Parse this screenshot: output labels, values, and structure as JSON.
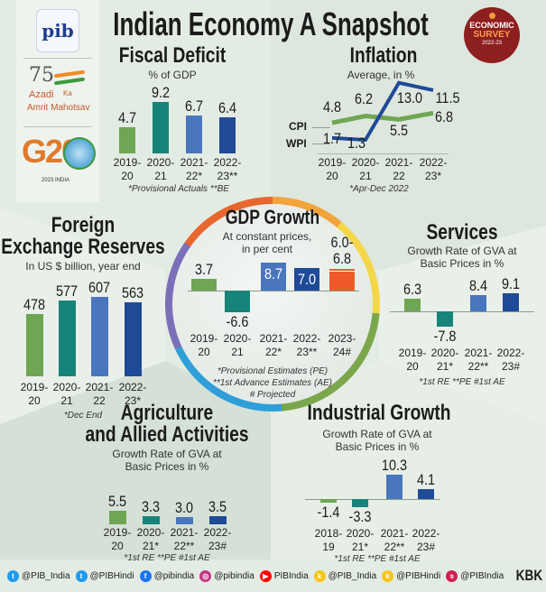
{
  "header": {
    "title": "Indian Economy A Snapshot"
  },
  "logos": {
    "pib": "pib",
    "azadi_75": "75",
    "azadi_line1": "Azadi",
    "azadi_ka": "Ka",
    "azadi_line2": "Amrit Mahotsav",
    "g20": "G20",
    "g20_sub": "2023 INDIA"
  },
  "badge": {
    "line1": "ECONOMIC",
    "line2": "SURVEY",
    "line3": "2022-23",
    "color": "#8e1f1f"
  },
  "colors": {
    "green": "#6fa653",
    "teal": "#17847a",
    "blue": "#4a76bd",
    "dark_blue": "#1f4a97",
    "orange": "#f05a2b"
  },
  "chart_data": [
    {
      "id": "fiscal",
      "type": "bar",
      "title": "Fiscal Deficit",
      "subtitle": "% of GDP",
      "categories": [
        "2019-20",
        "2020-21",
        "2021-22*",
        "2022-23**"
      ],
      "values": [
        4.7,
        9.2,
        6.7,
        6.4
      ],
      "labels": [
        "4.7",
        "9.2",
        "6.7",
        "6.4"
      ],
      "footnote": "*Provisional Actuals **BE"
    },
    {
      "id": "inflation",
      "type": "line",
      "title": "Inflation",
      "subtitle": "Average, in %",
      "categories": [
        "2019-20",
        "2020-21",
        "2021-22",
        "2022-23*"
      ],
      "series": [
        {
          "name": "CPI",
          "values": [
            4.8,
            6.2,
            5.5,
            6.8
          ],
          "labels": [
            "4.8",
            "6.2",
            "5.5",
            "6.8"
          ],
          "color": "#6fa653"
        },
        {
          "name": "WPI",
          "values": [
            1.7,
            1.3,
            13.0,
            11.5
          ],
          "labels": [
            "1.7",
            "1.3",
            "13.0",
            "11.5"
          ],
          "color": "#1f4a97"
        }
      ],
      "footnote": "*Apr-Dec 2022"
    },
    {
      "id": "gdp",
      "type": "bar",
      "title": "GDP Growth",
      "subtitle1": "At constant prices,",
      "subtitle2": "in per cent",
      "categories": [
        "2019-20",
        "2020-21",
        "2021-22*",
        "2022-23**",
        "2023-24#"
      ],
      "values": [
        3.7,
        -6.6,
        8.7,
        7.0,
        6.8
      ],
      "range_low": 6.0,
      "labels": [
        "3.7",
        "-6.6",
        "8.7",
        "7.0",
        "6.0-6.8"
      ],
      "footnote1": "*Provisional Estimates (PE)",
      "footnote2": "**1st Advance Estimates (AE)",
      "footnote3": "# Projected"
    },
    {
      "id": "forex",
      "type": "bar",
      "title1": "Foreign",
      "title2": "Exchange Reserves",
      "subtitle": "In US $ billion, year end",
      "categories": [
        "2019-20",
        "2020-21",
        "2021-22",
        "2022-23*"
      ],
      "values": [
        478,
        577,
        607,
        563
      ],
      "labels": [
        "478",
        "577",
        "607",
        "563"
      ],
      "footnote": "*Dec End"
    },
    {
      "id": "services",
      "type": "bar",
      "title": "Services",
      "subtitle1": "Growth Rate of GVA at",
      "subtitle2": "Basic Prices in %",
      "categories": [
        "2019-20",
        "2020-21*",
        "2021-22**",
        "2022-23#"
      ],
      "values": [
        6.3,
        -7.8,
        8.4,
        9.1
      ],
      "labels": [
        "6.3",
        "-7.8",
        "8.4",
        "9.1"
      ],
      "footnote": "*1st RE **PE #1st AE"
    },
    {
      "id": "agri",
      "type": "bar",
      "title1": "Agriculture",
      "title2": "and Allied Activities",
      "subtitle1": "Growth Rate of GVA at",
      "subtitle2": "Basic Prices in %",
      "categories": [
        "2019-20",
        "2020-21*",
        "2021-22**",
        "2022-23#"
      ],
      "values": [
        5.5,
        3.3,
        3.0,
        3.5
      ],
      "labels": [
        "5.5",
        "3.3",
        "3.0",
        "3.5"
      ],
      "footnote": "*1st RE **PE #1st AE"
    },
    {
      "id": "industrial",
      "type": "bar",
      "title": "Industrial Growth",
      "subtitle1": "Growth Rate of GVA at",
      "subtitle2": "Basic Prices in %",
      "categories": [
        "2018-19",
        "2020-21*",
        "2021-22**",
        "2022-23#"
      ],
      "values": [
        -1.4,
        -3.3,
        10.3,
        4.1
      ],
      "labels": [
        "-1.4",
        "-3.3",
        "10.3",
        "4.1"
      ],
      "footnote": "*1st RE **PE #1st AE"
    }
  ],
  "footer": {
    "items": [
      {
        "icon": "twitter-icon",
        "handle": "@PIB_India",
        "color": "#1d9bf0"
      },
      {
        "icon": "twitter-icon",
        "handle": "@PIBHindi",
        "color": "#1d9bf0"
      },
      {
        "icon": "facebook-icon",
        "handle": "@pibindia",
        "color": "#1877f2"
      },
      {
        "icon": "instagram-icon",
        "handle": "@pibindia",
        "color": "#c13584"
      },
      {
        "icon": "youtube-icon",
        "handle": "PIBIndia",
        "color": "#ff0000"
      },
      {
        "icon": "koo-icon",
        "handle": "@PIB_India",
        "color": "#f5c518"
      },
      {
        "icon": "koo-icon",
        "handle": "@PIBHindi",
        "color": "#f5c518"
      },
      {
        "icon": "sharechat-icon",
        "handle": "@PIBIndia",
        "color": "#d11f4f"
      }
    ],
    "credit": "KBK"
  }
}
